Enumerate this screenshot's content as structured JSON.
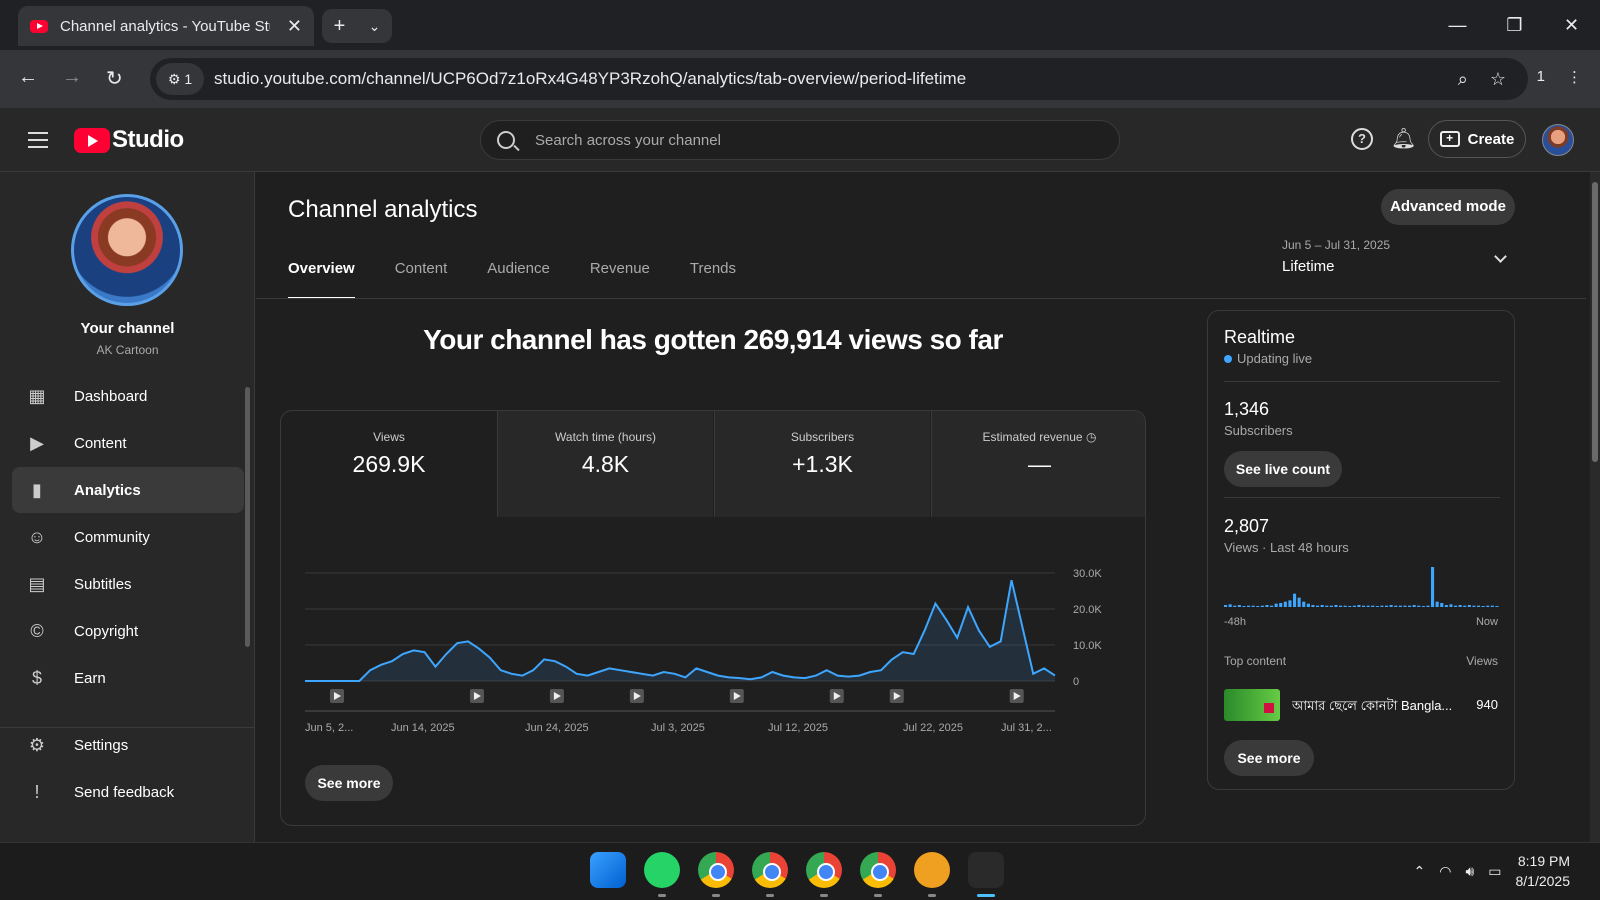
{
  "browser": {
    "tab_title": "Channel analytics - YouTube Studio",
    "url": "studio.youtube.com/channel/UCP6Od7z1oRx4G48YP3RzohQ/analytics/tab-overview/period-lifetime",
    "site_badge": "1",
    "extension_count": "1"
  },
  "header": {
    "logo_text": "Studio",
    "search_placeholder": "Search across your channel",
    "create_label": "Create"
  },
  "sidebar": {
    "channel_title": "Your channel",
    "channel_name": "AK Cartoon",
    "items": [
      {
        "label": "Dashboard",
        "icon": "dashboard-icon"
      },
      {
        "label": "Content",
        "icon": "content-icon"
      },
      {
        "label": "Analytics",
        "icon": "analytics-icon"
      },
      {
        "label": "Community",
        "icon": "community-icon"
      },
      {
        "label": "Subtitles",
        "icon": "subtitles-icon"
      },
      {
        "label": "Copyright",
        "icon": "copyright-icon"
      },
      {
        "label": "Earn",
        "icon": "earn-icon"
      }
    ],
    "settings_label": "Settings",
    "feedback_label": "Send feedback"
  },
  "main": {
    "title": "Channel analytics",
    "advanced_mode": "Advanced mode",
    "tabs": [
      "Overview",
      "Content",
      "Audience",
      "Revenue",
      "Trends"
    ],
    "active_tab": "Overview",
    "date_range": "Jun 5 – Jul 31, 2025",
    "period": "Lifetime",
    "headline": "Your channel has gotten 269,914 views so far",
    "metrics": [
      {
        "label": "Views",
        "value": "269.9K"
      },
      {
        "label": "Watch time (hours)",
        "value": "4.8K"
      },
      {
        "label": "Subscribers",
        "value": "+1.3K"
      },
      {
        "label": "Estimated revenue",
        "value": "—"
      }
    ],
    "see_more": "See more"
  },
  "chart_data": {
    "type": "area",
    "title": "",
    "ylabel": "",
    "xlabel": "",
    "ylim": [
      0,
      30000
    ],
    "yticks": [
      "30.0K",
      "20.0K",
      "10.0K",
      "0"
    ],
    "xtick_labels": [
      "Jun 5, 2...",
      "Jun 14, 2025",
      "Jun 24, 2025",
      "Jul 3, 2025",
      "Jul 12, 2025",
      "Jul 22, 2025",
      "Jul 31, 2..."
    ],
    "series": [
      {
        "values": [
          0,
          0,
          0,
          0,
          0,
          0,
          3000,
          4500,
          5500,
          7500,
          8500,
          8000,
          4000,
          7500,
          10500,
          11000,
          9000,
          6500,
          3000,
          2000,
          1500,
          3000,
          6000,
          5500,
          4000,
          2000,
          1500,
          2500,
          3500,
          3000,
          2500,
          2000,
          1500,
          2500,
          2000,
          1000,
          3500,
          2500,
          1500,
          1000,
          800,
          500,
          1000,
          2500,
          1500,
          1000,
          800,
          1500,
          3000,
          1500,
          1200,
          1500,
          2500,
          3000,
          6000,
          8000,
          7500,
          14000,
          21500,
          17000,
          12000,
          20500,
          14000,
          9500,
          11000,
          28000,
          15000,
          2000,
          3500,
          1500
        ]
      }
    ],
    "video_markers_count": 10
  },
  "realtime": {
    "title": "Realtime",
    "live_label": "Updating live",
    "subscribers_value": "1,346",
    "subscribers_label": "Subscribers",
    "see_live_count": "See live count",
    "views_value": "2,807",
    "views_label": "Views · Last 48 hours",
    "axis_left": "-48h",
    "axis_right": "Now",
    "top_content_label": "Top content",
    "top_content_views_label": "Views",
    "top_item_title": "আমার ছেলে কোনটা Bangla...",
    "top_item_views": "940",
    "see_more": "See more",
    "bars": [
      3,
      4,
      2,
      3,
      1,
      2,
      2,
      1,
      2,
      3,
      2,
      5,
      6,
      8,
      10,
      20,
      14,
      8,
      5,
      3,
      2,
      3,
      2,
      2,
      3,
      2,
      2,
      1,
      2,
      3,
      2,
      2,
      2,
      1,
      2,
      2,
      3,
      2,
      2,
      2,
      2,
      3,
      2,
      1,
      2,
      60,
      8,
      6,
      3,
      4,
      2,
      3,
      2,
      3,
      2,
      2,
      1,
      2,
      2,
      1
    ]
  },
  "taskbar": {
    "time": "8:19 PM",
    "date": "8/1/2025"
  }
}
